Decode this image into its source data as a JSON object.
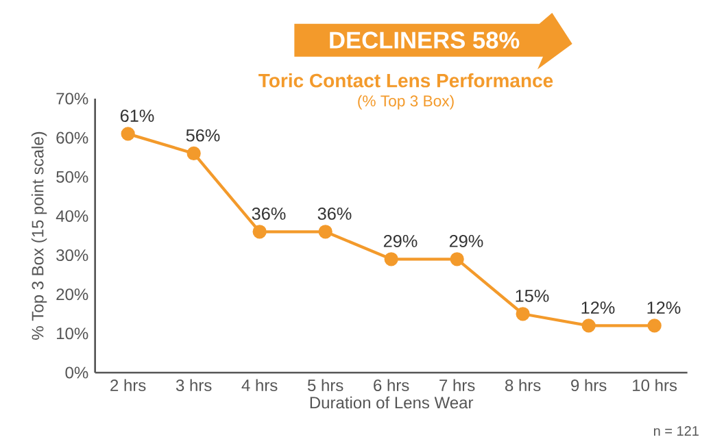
{
  "chart_data": {
    "type": "line",
    "title": "Toric Contact Lens Performance",
    "subtitle": "(% Top 3 Box)",
    "xlabel": "Duration of Lens Wear",
    "ylabel": "% Top 3 Box (15 point scale)",
    "categories": [
      "2 hrs",
      "3 hrs",
      "4 hrs",
      "5 hrs",
      "6 hrs",
      "7 hrs",
      "8 hrs",
      "9 hrs",
      "10 hrs"
    ],
    "values": [
      61,
      56,
      36,
      36,
      29,
      29,
      15,
      12,
      12
    ],
    "value_labels": [
      "61%",
      "56%",
      "36%",
      "36%",
      "29%",
      "29%",
      "15%",
      "12%",
      "12%"
    ],
    "color": "#f39a2b",
    "marker": "circle",
    "line_style": "solid",
    "grid": false,
    "ylim": [
      0,
      70
    ],
    "yticks": [
      {
        "value": 0,
        "label": "0%"
      },
      {
        "value": 10,
        "label": "10%"
      },
      {
        "value": 20,
        "label": "20%"
      },
      {
        "value": 30,
        "label": "30%"
      },
      {
        "value": 40,
        "label": "40%"
      },
      {
        "value": 50,
        "label": "50%"
      },
      {
        "value": 60,
        "label": "60%"
      },
      {
        "value": 70,
        "label": "70%"
      }
    ],
    "annotations": [
      "DECLINERS  58%",
      "n = 121"
    ]
  }
}
